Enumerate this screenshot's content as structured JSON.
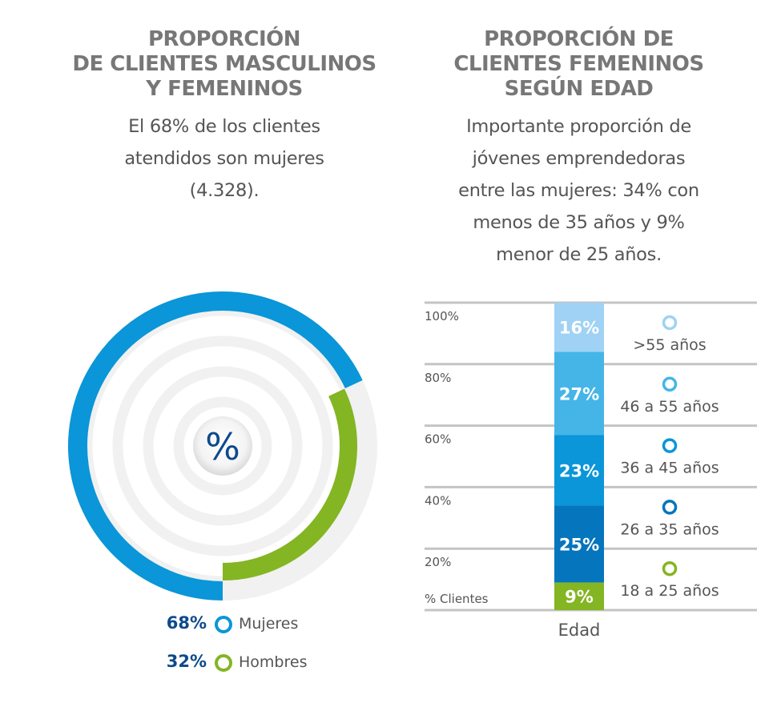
{
  "left_panel": {
    "title_lines": [
      "PROPORCIÓN",
      "DE CLIENTES MASCULINOS",
      "Y FEMENINOS"
    ],
    "subtitle_lines": [
      "El 68% de los clientes",
      "atendidos son mujeres",
      "(4.328)."
    ],
    "center_symbol": "%"
  },
  "right_panel": {
    "title_lines": [
      "PROPORCIÓN DE",
      "CLIENTES FEMENINOS",
      "SEGÚN EDAD"
    ],
    "subtitle_lines": [
      "Importante proporción de",
      "jóvenes emprendedoras",
      "entre las mujeres: 34% con",
      "menos de 35 años y 9%",
      "menor de 25 años."
    ]
  },
  "colors": {
    "mujeres": "#0a96d8",
    "hombres": "#84b523",
    "ring_bg": "#f1f1f1",
    "grid": "#c4c4c4",
    "pct_text": "#0d4a8c"
  },
  "chart_data": [
    {
      "type": "pie",
      "categories": [
        "Mujeres",
        "Hombres"
      ],
      "values": [
        68,
        32
      ],
      "labels": [
        "68%",
        "32%"
      ],
      "colors": [
        "#0a96d8",
        "#84b523"
      ],
      "legend": "bottom"
    },
    {
      "type": "bar",
      "stacked": true,
      "categories": [
        "18 a 25 años",
        "26 a 35 años",
        "36 a 45 años",
        "46 a 55 años",
        ">55 años"
      ],
      "values": [
        9,
        25,
        23,
        27,
        16
      ],
      "labels": [
        "9%",
        "25%",
        "23%",
        "27%",
        "16%"
      ],
      "colors": [
        "#84b523",
        "#0575bd",
        "#0a96d8",
        "#45b5e8",
        "#9fd2f4"
      ],
      "yticks": [
        "20%",
        "40%",
        "60%",
        "80%",
        "100%"
      ],
      "ylabel": "% Clientes",
      "xlabel": "Edad",
      "ylim": [
        0,
        100
      ],
      "grid": true,
      "legend": "right"
    }
  ]
}
